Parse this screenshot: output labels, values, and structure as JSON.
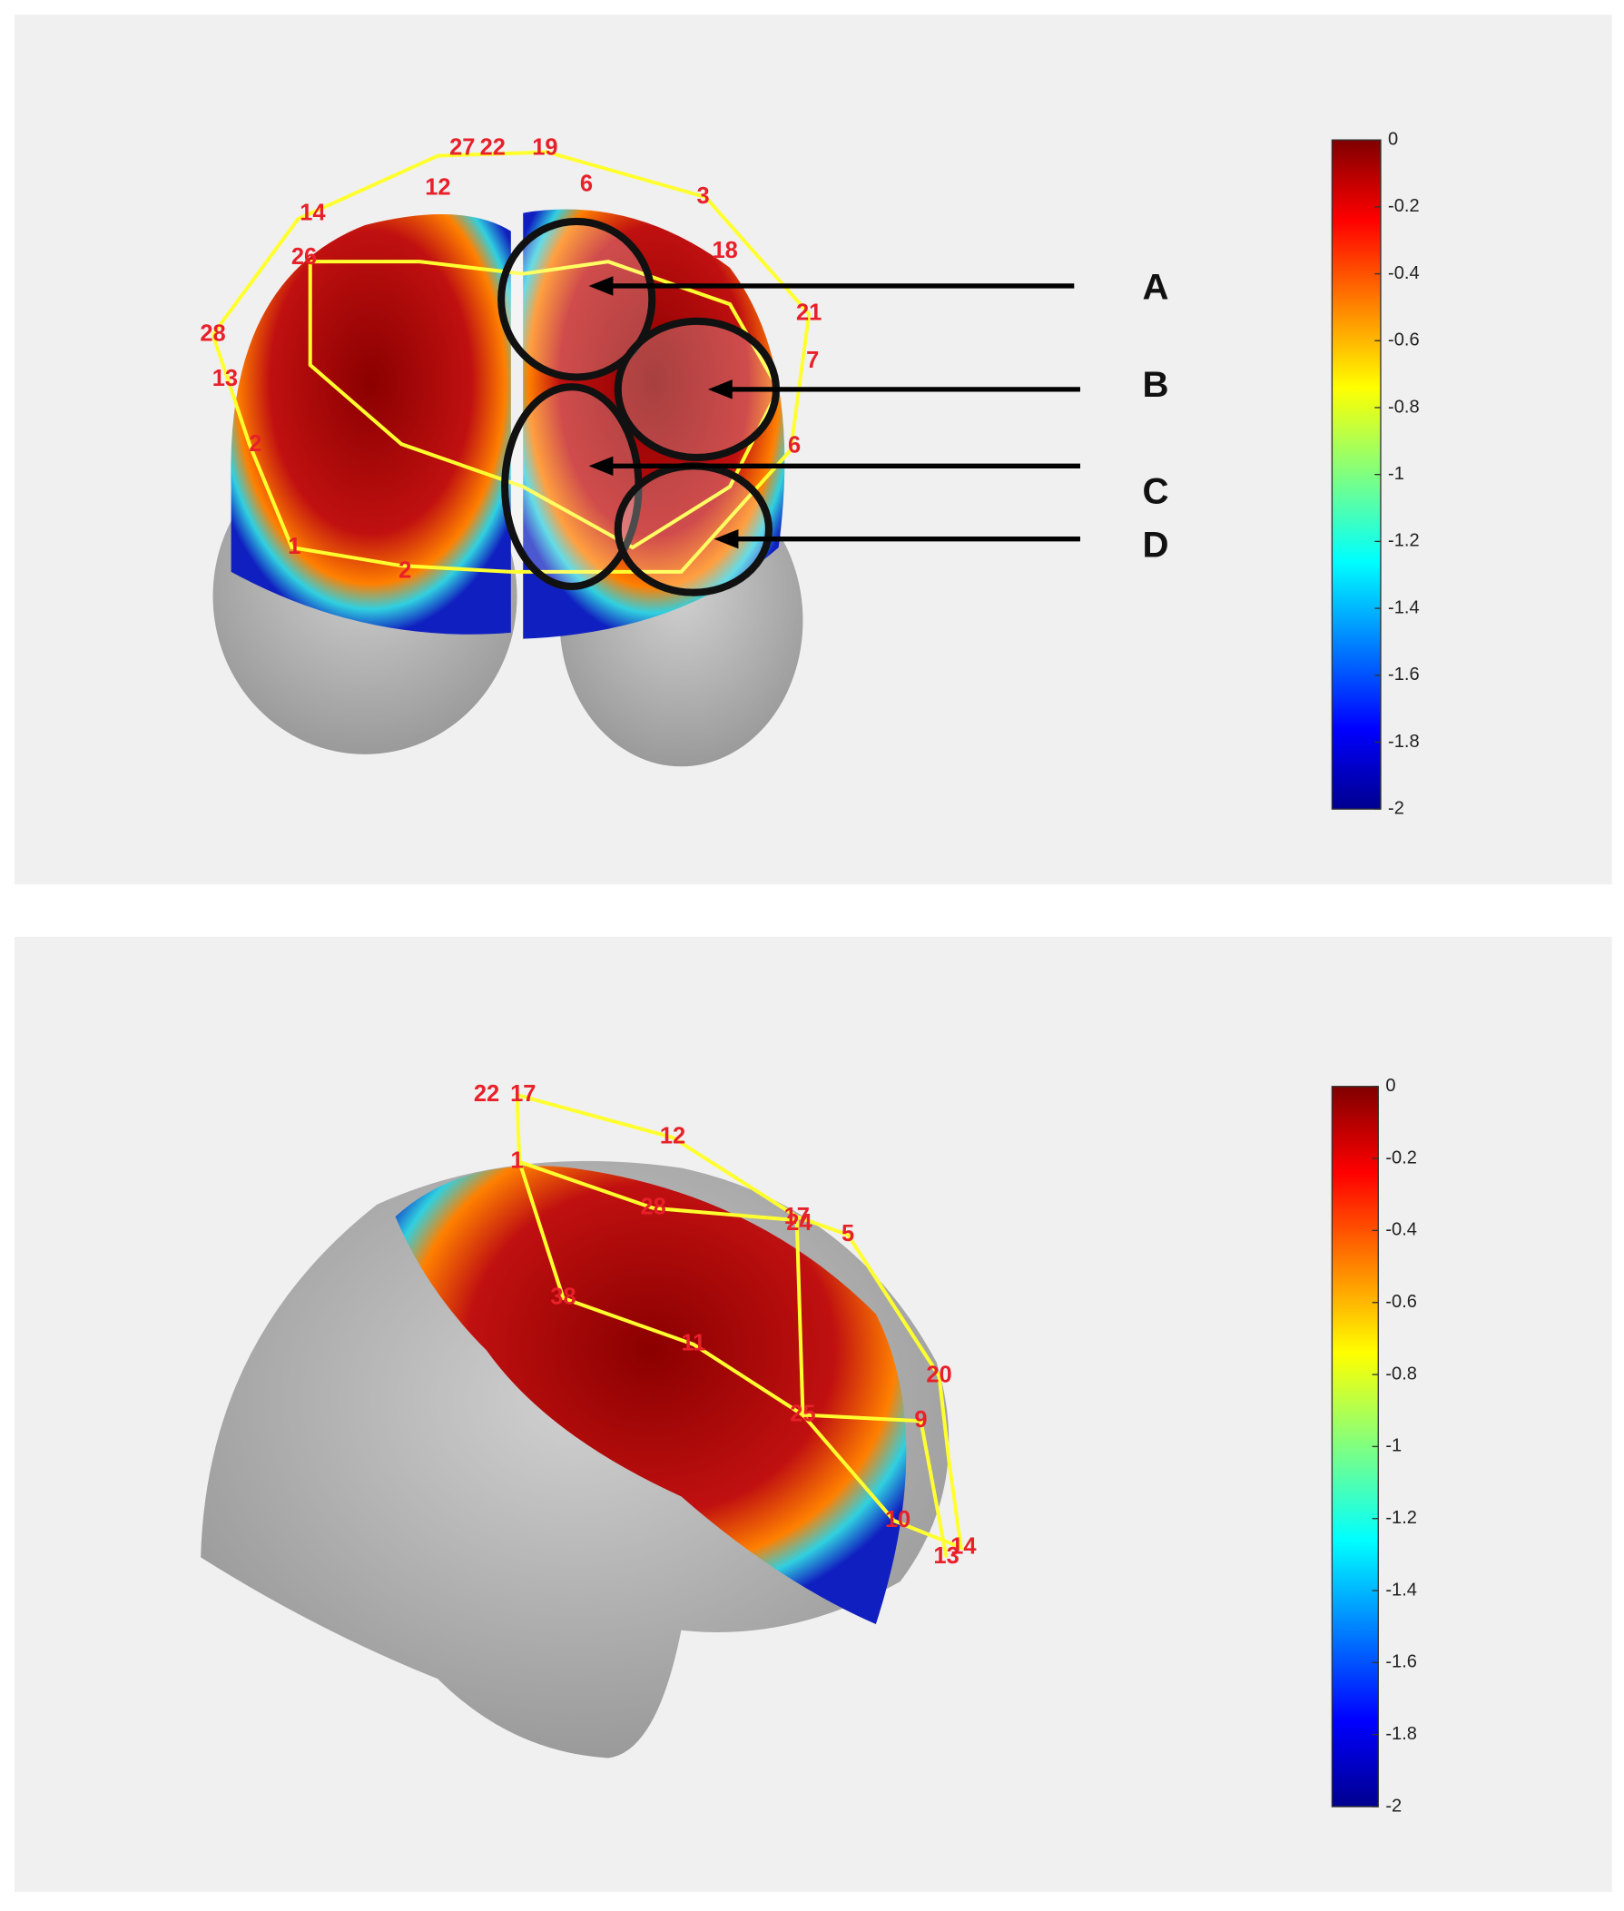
{
  "panels": [
    {
      "colorbar": {
        "lim": [
          -2,
          0
        ],
        "ticks": [
          0,
          -0.2,
          -0.4,
          -0.6,
          -0.8,
          -1,
          -1.2,
          -1.4,
          -1.6,
          -1.8,
          -2
        ]
      },
      "channel_labels": [
        "27",
        "22",
        "19",
        "6",
        "3",
        "14",
        "12",
        "26",
        "18",
        "21",
        "28",
        "7",
        "13",
        "6",
        "2",
        "1",
        "2"
      ],
      "annotations": [
        "A",
        "B",
        "C",
        "D"
      ]
    },
    {
      "colorbar": {
        "lim": [
          -2,
          0
        ],
        "ticks": [
          0,
          -0.2,
          -0.4,
          -0.6,
          -0.8,
          -1,
          -1.2,
          -1.4,
          -1.6,
          -1.8,
          -2
        ]
      },
      "channel_labels": [
        "22",
        "17",
        "12",
        "1",
        "28",
        "17",
        "24",
        "5",
        "38",
        "11",
        "20",
        "9",
        "25",
        "10",
        "14",
        "13"
      ]
    }
  ]
}
